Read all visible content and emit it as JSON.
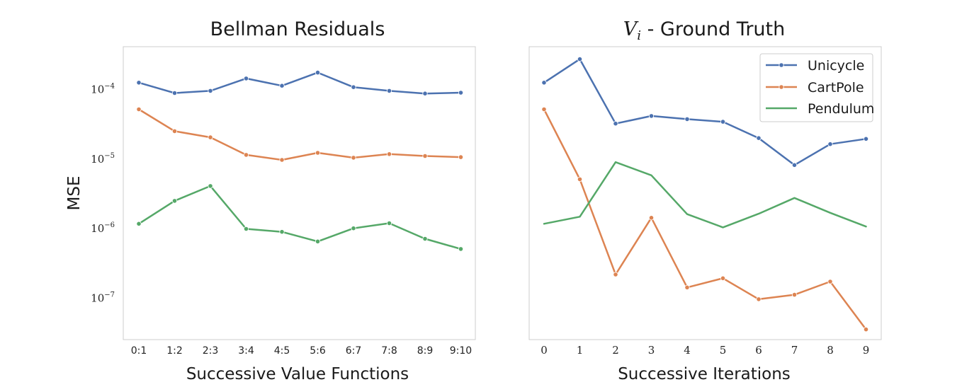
{
  "chart_data": [
    {
      "type": "line",
      "title": "Bellman Residuals",
      "xlabel": "Successive Value Functions",
      "ylabel": "MSE",
      "yscale": "log",
      "ylim": [
        2.5e-08,
        0.0004
      ],
      "ytick_labels": [
        "10",
        "10",
        "10",
        "10"
      ],
      "ytick_exponents": [
        "−7",
        "−6",
        "−5",
        "−4"
      ],
      "ytick_values": [
        1e-07,
        1e-06,
        1e-05,
        0.0001
      ],
      "categories": [
        "0:1",
        "1:2",
        "2:3",
        "3:4",
        "4:5",
        "5:6",
        "6:7",
        "7:8",
        "8:9",
        "9:10"
      ],
      "markers": true,
      "grid": false,
      "series": [
        {
          "name": "Unicycle",
          "color": "#4c72b0",
          "values": [
            0.000122,
            8.65e-05,
            9.3e-05,
            0.00014,
            0.00011,
            0.00017,
            0.000105,
            9.3e-05,
            8.5e-05,
            8.75e-05
          ]
        },
        {
          "name": "CartPole",
          "color": "#dd8452",
          "values": [
            5.05e-05,
            2.45e-05,
            2e-05,
            1.12e-05,
            9.5e-06,
            1.2e-05,
            1.02e-05,
            1.15e-05,
            1.08e-05,
            1.04e-05
          ]
        },
        {
          "name": "Pendulum",
          "color": "#55a868",
          "values": [
            1.15e-06,
            2.45e-06,
            4e-06,
            9.7e-07,
            8.8e-07,
            6.4e-07,
            9.9e-07,
            1.17e-06,
            7e-07,
            5e-07
          ]
        }
      ]
    },
    {
      "type": "line",
      "title_math": "V",
      "title_math_sub": "i",
      "title_rest": " - Ground Truth",
      "xlabel": "Successive Iterations",
      "yscale": "log",
      "ylim": [
        2.5e-08,
        0.0004
      ],
      "x": [
        0,
        1,
        2,
        3,
        4,
        5,
        6,
        7,
        8,
        9
      ],
      "legend": "top-right",
      "grid": false,
      "series": [
        {
          "name": "Unicycle",
          "color": "#4c72b0",
          "markers": true,
          "values": [
            0.000122,
            0.000265,
            3.15e-05,
            4.05e-05,
            3.65e-05,
            3.35e-05,
            1.95e-05,
            8e-06,
            1.6e-05,
            1.9e-05
          ]
        },
        {
          "name": "CartPole",
          "color": "#dd8452",
          "markers": true,
          "values": [
            5.05e-05,
            5e-06,
            2.15e-07,
            1.4e-06,
            1.4e-07,
            1.9e-07,
            9.5e-08,
            1.1e-07,
            1.7e-07,
            3.5e-08
          ]
        },
        {
          "name": "Pendulum",
          "color": "#55a868",
          "markers": false,
          "values": [
            1.15e-06,
            1.45e-06,
            8.8e-06,
            5.7e-06,
            1.58e-06,
            1.02e-06,
            1.6e-06,
            2.7e-06,
            1.65e-06,
            1.05e-06
          ]
        }
      ]
    }
  ]
}
